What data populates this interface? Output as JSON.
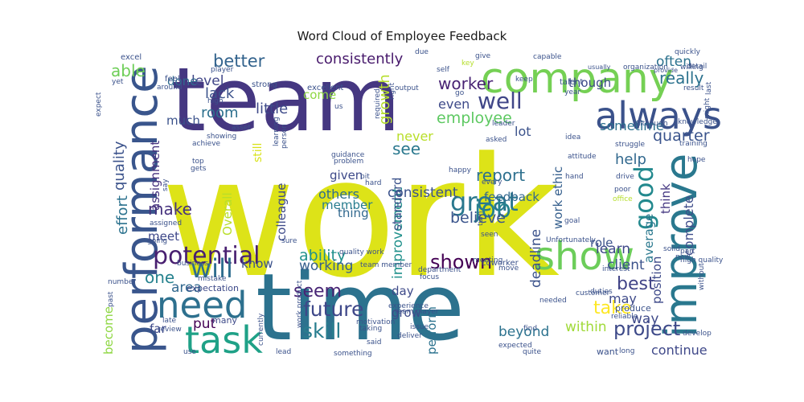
{
  "chart_data": {
    "type": "wordcloud",
    "title": "Word Cloud of Employee Feedback",
    "colormap": "viridis",
    "background": "#ffffff",
    "words": [
      {
        "text": "work",
        "weight": 100,
        "color": "#dde318"
      },
      {
        "text": "time",
        "weight": 60,
        "color": "#2c728e"
      },
      {
        "text": "team",
        "weight": 58,
        "color": "#453781"
      },
      {
        "text": "company",
        "weight": 34,
        "color": "#75d054"
      },
      {
        "text": "improve",
        "weight": 30,
        "color": "#2a788e"
      },
      {
        "text": "performance",
        "weight": 30,
        "color": "#39558c"
      },
      {
        "text": "always",
        "weight": 28,
        "color": "#3b528b"
      },
      {
        "text": "show",
        "weight": 26,
        "color": "#6ccd5a"
      },
      {
        "text": "need",
        "weight": 26,
        "color": "#2d708e"
      },
      {
        "text": "task",
        "weight": 24,
        "color": "#1fa187"
      },
      {
        "text": "potential",
        "weight": 17,
        "color": "#481f70"
      },
      {
        "text": "great",
        "weight": 16,
        "color": "#2a788e"
      },
      {
        "text": "good",
        "weight": 16,
        "color": "#23898e"
      },
      {
        "text": "well",
        "weight": 15,
        "color": "#404688"
      },
      {
        "text": "will",
        "weight": 16,
        "color": "#2e6d8e"
      },
      {
        "text": "job",
        "weight": 15,
        "color": "#26828e"
      },
      {
        "text": "project",
        "weight": 15,
        "color": "#3e4a89"
      },
      {
        "text": "future",
        "weight": 14,
        "color": "#3f4889"
      },
      {
        "text": "shown",
        "weight": 13,
        "color": "#440154"
      },
      {
        "text": "skill",
        "weight": 13,
        "color": "#287d8e"
      },
      {
        "text": "worker",
        "weight": 12,
        "color": "#482374"
      },
      {
        "text": "better",
        "weight": 12,
        "color": "#33638d"
      },
      {
        "text": "consistently",
        "weight": 11,
        "color": "#481a6c"
      },
      {
        "text": "employee",
        "weight": 11,
        "color": "#5ec962"
      },
      {
        "text": "really",
        "weight": 11,
        "color": "#2c728e"
      },
      {
        "text": "quarter",
        "weight": 11,
        "color": "#3a548c"
      },
      {
        "text": "believe",
        "weight": 11,
        "color": "#3a548c"
      },
      {
        "text": "ability",
        "weight": 11,
        "color": "#21918c"
      },
      {
        "text": "seem",
        "weight": 11,
        "color": "#482575"
      },
      {
        "text": "take",
        "weight": 11,
        "color": "#fde725"
      },
      {
        "text": "best",
        "weight": 11,
        "color": "#414487"
      },
      {
        "text": "see",
        "weight": 10,
        "color": "#2a788e"
      },
      {
        "text": "report",
        "weight": 10,
        "color": "#2d708e"
      },
      {
        "text": "make",
        "weight": 10,
        "color": "#46327e"
      },
      {
        "text": "one",
        "weight": 10,
        "color": "#26828e"
      },
      {
        "text": "often",
        "weight": 9,
        "color": "#2c728e"
      },
      {
        "text": "able",
        "weight": 9,
        "color": "#6ece58"
      },
      {
        "text": "quality",
        "weight": 9,
        "color": "#3b528b"
      },
      {
        "text": "effort",
        "weight": 9,
        "color": "#2c728e"
      },
      {
        "text": "lack",
        "weight": 9,
        "color": "#3b528b"
      },
      {
        "text": "level",
        "weight": 9,
        "color": "#404688"
      },
      {
        "text": "growth",
        "weight": 9,
        "color": "#b5de2b"
      },
      {
        "text": "little",
        "weight": 9,
        "color": "#3e4a89"
      },
      {
        "text": "room",
        "weight": 9,
        "color": "#2d708e"
      },
      {
        "text": "help",
        "weight": 9,
        "color": "#31688e"
      },
      {
        "text": "complete",
        "weight": 9,
        "color": "#3e4c8a"
      },
      {
        "text": "working",
        "weight": 9,
        "color": "#355f8d"
      },
      {
        "text": "client",
        "weight": 9,
        "color": "#3b528b"
      },
      {
        "text": "learn",
        "weight": 9,
        "color": "#3f4889"
      },
      {
        "text": "continue",
        "weight": 9,
        "color": "#3f4889"
      },
      {
        "text": "area",
        "weight": 9,
        "color": "#31688e"
      },
      {
        "text": "put",
        "weight": 9,
        "color": "#440154"
      },
      {
        "text": "way",
        "weight": 9,
        "color": "#3e4989"
      },
      {
        "text": "within",
        "weight": 9,
        "color": "#a0da39"
      },
      {
        "text": "improvement",
        "weight": 9,
        "color": "#21918c"
      },
      {
        "text": "consistent",
        "weight": 9,
        "color": "#3b528b"
      },
      {
        "text": "deadline",
        "weight": 9,
        "color": "#3b528b"
      },
      {
        "text": "beyond",
        "weight": 9,
        "color": "#2c728e"
      },
      {
        "text": "done",
        "weight": 8,
        "color": "#306a8e"
      },
      {
        "text": "much",
        "weight": 8,
        "color": "#3b528b"
      },
      {
        "text": "come",
        "weight": 8,
        "color": "#8fd744"
      },
      {
        "text": "even",
        "weight": 8,
        "color": "#3e4a89"
      },
      {
        "text": "never",
        "weight": 8,
        "color": "#b8de29"
      },
      {
        "text": "lot",
        "weight": 8,
        "color": "#3b528b"
      },
      {
        "text": "sometime",
        "weight": 8,
        "color": "#2d708e"
      },
      {
        "text": "though",
        "weight": 8,
        "color": "#3e4a89"
      },
      {
        "text": "assignment",
        "weight": 8,
        "color": "#46327e"
      },
      {
        "text": "given",
        "weight": 8,
        "color": "#3e4a89"
      },
      {
        "text": "others",
        "weight": 8,
        "color": "#2e6d8e"
      },
      {
        "text": "member",
        "weight": 8,
        "color": "#287d8e"
      },
      {
        "text": "feedback",
        "weight": 8,
        "color": "#31688e"
      },
      {
        "text": "work ethic",
        "weight": 8,
        "color": "#355f8d"
      },
      {
        "text": "think",
        "weight": 8,
        "color": "#453882"
      },
      {
        "text": "average",
        "weight": 8,
        "color": "#2a788e"
      },
      {
        "text": "position",
        "weight": 8,
        "color": "#3e4a89"
      },
      {
        "text": "colleague",
        "weight": 8,
        "color": "#3e4a89"
      },
      {
        "text": "thing",
        "weight": 8,
        "color": "#31688e"
      },
      {
        "text": "standard",
        "weight": 8,
        "color": "#3b528b"
      },
      {
        "text": "meet",
        "weight": 8,
        "color": "#3f4889"
      },
      {
        "text": "Overall",
        "weight": 8,
        "color": "#b8de29"
      },
      {
        "text": "still",
        "weight": 8,
        "color": "#d8e219"
      },
      {
        "text": "know",
        "weight": 8,
        "color": "#3b528b"
      },
      {
        "text": "role",
        "weight": 8,
        "color": "#3b528b"
      },
      {
        "text": "may",
        "weight": 8,
        "color": "#3e4a89"
      },
      {
        "text": "day",
        "weight": 8,
        "color": "#3e4a89"
      },
      {
        "text": "grow",
        "weight": 8,
        "color": "#3e4a89"
      },
      {
        "text": "perform",
        "weight": 8,
        "color": "#2c728e"
      },
      {
        "text": "far",
        "weight": 8,
        "color": "#3e4a89"
      },
      {
        "text": "become",
        "weight": 8,
        "color": "#8fd744"
      },
      {
        "text": "expectation",
        "weight": 6,
        "color": "#3e4a89"
      },
      {
        "text": "many",
        "weight": 6,
        "color": "#3e4a89"
      },
      {
        "text": "produce",
        "weight": 6,
        "color": "#3b528b"
      },
      {
        "text": "want",
        "weight": 6,
        "color": "#3b528b"
      },
      {
        "text": "coworker",
        "weight": 5,
        "color": "#3b528b"
      },
      {
        "text": "excel",
        "weight": 5,
        "color": "#3b528b"
      },
      {
        "text": "feel",
        "weight": 5,
        "color": "#3b528b"
      },
      {
        "text": "high",
        "weight": 5,
        "color": "#3b528b"
      },
      {
        "text": "around",
        "weight": 5,
        "color": "#3b528b"
      },
      {
        "text": "yet",
        "weight": 5,
        "color": "#3b528b"
      },
      {
        "text": "expect",
        "weight": 5,
        "color": "#3b528b"
      },
      {
        "text": "player",
        "weight": 5,
        "color": "#3b528b"
      },
      {
        "text": "strong",
        "weight": 5,
        "color": "#3b528b"
      },
      {
        "text": "excellent",
        "weight": 5,
        "color": "#3b528b"
      },
      {
        "text": "self",
        "weight": 5,
        "color": "#3b528b"
      },
      {
        "text": "key",
        "weight": 5,
        "color": "#b5de2b"
      },
      {
        "text": "capable",
        "weight": 5,
        "color": "#3b528b"
      },
      {
        "text": "keep",
        "weight": 5,
        "color": "#3b528b"
      },
      {
        "text": "talent",
        "weight": 5,
        "color": "#3b528b"
      },
      {
        "text": "usually",
        "weight": 5,
        "color": "#3b528b"
      },
      {
        "text": "organization",
        "weight": 5,
        "color": "#3b528b"
      },
      {
        "text": "provide",
        "weight": 5,
        "color": "#3b528b"
      },
      {
        "text": "quickly",
        "weight": 5,
        "color": "#3b528b"
      },
      {
        "text": "willing",
        "weight": 5,
        "color": "#3b528b"
      },
      {
        "text": "year",
        "weight": 5,
        "color": "#3b528b"
      },
      {
        "text": "result",
        "weight": 5,
        "color": "#3b528b"
      },
      {
        "text": "Although",
        "weight": 5,
        "color": "#3b528b"
      },
      {
        "text": "knowledge",
        "weight": 5,
        "color": "#3b528b"
      },
      {
        "text": "training",
        "weight": 5,
        "color": "#3b528b"
      },
      {
        "text": "idea",
        "weight": 5,
        "color": "#3b528b"
      },
      {
        "text": "attitude",
        "weight": 5,
        "color": "#3b528b"
      },
      {
        "text": "struggle",
        "weight": 5,
        "color": "#3b528b"
      },
      {
        "text": "drive",
        "weight": 5,
        "color": "#3b528b"
      },
      {
        "text": "hand",
        "weight": 5,
        "color": "#3b528b"
      },
      {
        "text": "office",
        "weight": 5,
        "color": "#b5de2b"
      },
      {
        "text": "goal",
        "weight": 5,
        "color": "#3b528b"
      },
      {
        "text": "turn",
        "weight": 5,
        "color": "#3b528b"
      },
      {
        "text": "seen",
        "weight": 5,
        "color": "#3b528b"
      },
      {
        "text": "Unfortunately",
        "weight": 5,
        "color": "#3b528b"
      },
      {
        "text": "meeting",
        "weight": 5,
        "color": "#3b528b"
      },
      {
        "text": "team member",
        "weight": 5,
        "color": "#3b528b"
      },
      {
        "text": "department",
        "weight": 5,
        "color": "#3b528b"
      },
      {
        "text": "focus",
        "weight": 5,
        "color": "#3b528b"
      },
      {
        "text": "customer",
        "weight": 5,
        "color": "#3b528b"
      },
      {
        "text": "duties",
        "weight": 5,
        "color": "#3b528b"
      },
      {
        "text": "interest",
        "weight": 5,
        "color": "#3b528b"
      },
      {
        "text": "solid",
        "weight": 5,
        "color": "#3b528b"
      },
      {
        "text": "part",
        "weight": 5,
        "color": "#3b528b"
      },
      {
        "text": "new",
        "weight": 5,
        "color": "#3b528b"
      },
      {
        "text": "high quality",
        "weight": 5,
        "color": "#3b528b"
      },
      {
        "text": "without",
        "weight": 5,
        "color": "#3b528b"
      },
      {
        "text": "needed",
        "weight": 5,
        "color": "#3b528b"
      },
      {
        "text": "reliable",
        "weight": 5,
        "color": "#3b528b"
      },
      {
        "text": "long",
        "weight": 5,
        "color": "#3b528b"
      },
      {
        "text": "develop",
        "weight": 5,
        "color": "#3b528b"
      },
      {
        "text": "find",
        "weight": 5,
        "color": "#3b528b"
      },
      {
        "text": "expected",
        "weight": 5,
        "color": "#3b528b"
      },
      {
        "text": "quite",
        "weight": 5,
        "color": "#3b528b"
      },
      {
        "text": "said",
        "weight": 5,
        "color": "#3b528b"
      },
      {
        "text": "something",
        "weight": 5,
        "color": "#3b528b"
      },
      {
        "text": "deliver",
        "weight": 5,
        "color": "#3b528b"
      },
      {
        "text": "issue",
        "weight": 5,
        "color": "#3b528b"
      },
      {
        "text": "taking",
        "weight": 5,
        "color": "#3b528b"
      },
      {
        "text": "motivation",
        "weight": 5,
        "color": "#3b528b"
      },
      {
        "text": "team player",
        "weight": 5,
        "color": "#3b528b"
      },
      {
        "text": "experience",
        "weight": 5,
        "color": "#3b528b"
      },
      {
        "text": "currently",
        "weight": 5,
        "color": "#3b528b"
      },
      {
        "text": "work product",
        "weight": 5,
        "color": "#3b528b"
      },
      {
        "text": "past",
        "weight": 5,
        "color": "#3b528b"
      },
      {
        "text": "number",
        "weight": 5,
        "color": "#3b528b"
      },
      {
        "text": "late",
        "weight": 5,
        "color": "#3b528b"
      },
      {
        "text": "review",
        "weight": 5,
        "color": "#3b528b"
      },
      {
        "text": "use",
        "weight": 5,
        "color": "#3b528b"
      },
      {
        "text": "lead",
        "weight": 5,
        "color": "#3b528b"
      },
      {
        "text": "mistake",
        "weight": 5,
        "color": "#3b528b"
      },
      {
        "text": "business",
        "weight": 5,
        "color": "#3b528b"
      },
      {
        "text": "going",
        "weight": 5,
        "color": "#3b528b"
      },
      {
        "text": "assigned",
        "weight": 5,
        "color": "#3b528b"
      },
      {
        "text": "sure",
        "weight": 5,
        "color": "#3b528b"
      },
      {
        "text": "quality work",
        "weight": 5,
        "color": "#3b528b"
      },
      {
        "text": "say",
        "weight": 5,
        "color": "#3b528b"
      },
      {
        "text": "gets",
        "weight": 5,
        "color": "#3b528b"
      },
      {
        "text": "top",
        "weight": 5,
        "color": "#3b528b"
      },
      {
        "text": "achieve",
        "weight": 5,
        "color": "#3b528b"
      },
      {
        "text": "showing",
        "weight": 5,
        "color": "#3b528b"
      },
      {
        "text": "asset",
        "weight": 5,
        "color": "#3b528b"
      },
      {
        "text": "learning",
        "weight": 5,
        "color": "#3b528b"
      },
      {
        "text": "person",
        "weight": 5,
        "color": "#3b528b"
      },
      {
        "text": "guidance",
        "weight": 5,
        "color": "#3b528b"
      },
      {
        "text": "problem",
        "weight": 5,
        "color": "#3b528b"
      },
      {
        "text": "bit",
        "weight": 5,
        "color": "#3b528b"
      },
      {
        "text": "hard",
        "weight": 5,
        "color": "#3b528b"
      },
      {
        "text": "happy",
        "weight": 5,
        "color": "#3b528b"
      },
      {
        "text": "every",
        "weight": 5,
        "color": "#3b528b"
      },
      {
        "text": "asked",
        "weight": 5,
        "color": "#3b528b"
      },
      {
        "text": "leader",
        "weight": 5,
        "color": "#3b528b"
      },
      {
        "text": "required",
        "weight": 5,
        "color": "#3b528b"
      },
      {
        "text": "right",
        "weight": 5,
        "color": "#3b528b"
      },
      {
        "text": "go",
        "weight": 5,
        "color": "#3b528b"
      },
      {
        "text": "output",
        "weight": 5,
        "color": "#3b528b"
      },
      {
        "text": "due",
        "weight": 5,
        "color": "#3b528b"
      },
      {
        "text": "give",
        "weight": 5,
        "color": "#3b528b"
      },
      {
        "text": "us",
        "weight": 5,
        "color": "#3b528b"
      },
      {
        "text": "poor",
        "weight": 5,
        "color": "#3b528b"
      },
      {
        "text": "hope",
        "weight": 5,
        "color": "#3b528b"
      },
      {
        "text": "might",
        "weight": 5,
        "color": "#3b528b"
      },
      {
        "text": "last",
        "weight": 5,
        "color": "#3b528b"
      },
      {
        "text": "detail",
        "weight": 5,
        "color": "#3b528b"
      },
      {
        "text": "move",
        "weight": 5,
        "color": "#3b528b"
      }
    ]
  }
}
